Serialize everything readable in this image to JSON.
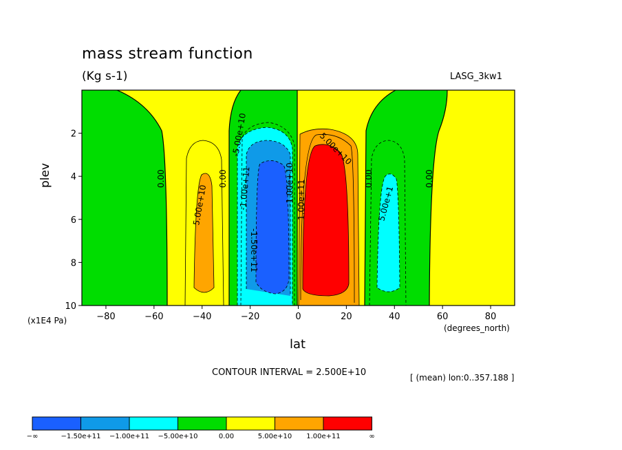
{
  "figure": {
    "title": "mass stream function",
    "units": "(Kg s-1)",
    "dataset": "LASG_3kw1",
    "y_units_label": "(x1E4 Pa)",
    "x_units_label": "(degrees_north)",
    "contour_interval_text": "CONTOUR INTERVAL = 2.500E+10",
    "region_text": "[ (mean) lon:0..357.188 ]"
  },
  "chart_data": {
    "type": "contour",
    "title": "mass stream function",
    "xlabel": "lat",
    "ylabel": "plev",
    "xlim": [
      -90,
      90
    ],
    "ylim": [
      10,
      0
    ],
    "x_ticks": [
      -80,
      -60,
      -40,
      -20,
      0,
      20,
      40,
      60,
      80
    ],
    "y_ticks": [
      2,
      4,
      6,
      8,
      10
    ],
    "contour_interval": 25000000000.0,
    "levels": [
      -150000000000.0,
      -100000000000.0,
      -50000000000.0,
      0,
      50000000000.0,
      100000000000.0
    ],
    "colorbar": {
      "labels": [
        "-∞",
        "-1.50e+11",
        "-1.00e+11",
        "-5.00e+10",
        "0.00",
        "5.00e+10",
        "1.00e+11",
        "∞"
      ],
      "colors": [
        "#1a60ff",
        "#0f9ae8",
        "#00ffff",
        "#00dd00",
        "#ffff00",
        "#ffa500",
        "#ff0000"
      ]
    },
    "cells": [
      {
        "name": "southern-polar-weak-cell",
        "lat_range": [
          -90,
          -54
        ],
        "plev_top": 0.5,
        "fill": "#00dd00",
        "label": "0.00"
      },
      {
        "name": "southern-ferrel-cell",
        "lat_range": [
          -54,
          -30
        ],
        "peak_lat": -40,
        "peak_plev": 6.5,
        "peak_range": "5.0e10 to 1.0e11",
        "label": "5.00e+10"
      },
      {
        "name": "southern-hadley-cell",
        "lat_range": [
          -30,
          0
        ],
        "peak_lat": -12,
        "peak_plev": 6,
        "peak_range": "< -1.5e11",
        "label": "-1.50e+11"
      },
      {
        "name": "northern-hadley-cell",
        "lat_range": [
          0,
          29
        ],
        "peak_lat": 10,
        "peak_plev": 6,
        "peak_range": "> 1.0e11",
        "label": "1.00e+11"
      },
      {
        "name": "northern-ferrel-cell",
        "lat_range": [
          30,
          55
        ],
        "peak_lat": 38,
        "peak_plev": 6.5,
        "peak_range": "-1.0e11 to -5.0e10",
        "label": "-5.00e+10"
      },
      {
        "name": "northern-polar-weak-cell",
        "lat_range": [
          55,
          90
        ],
        "fill": "#ffff00",
        "label": "0.00"
      }
    ],
    "contour_labels": [
      {
        "text": "0.00",
        "lat": -54,
        "plev": 4
      },
      {
        "text": "0.00",
        "lat": -30,
        "plev": 4
      },
      {
        "text": "5.00e+10",
        "lat": -41,
        "plev": 5
      },
      {
        "text": "-5.00e+10",
        "lat": -24,
        "plev": 2.6
      },
      {
        "text": "-1.00e+11",
        "lat": -20,
        "plev": 4.2
      },
      {
        "text": "-1.50e+11",
        "lat": -19,
        "plev": 6.3
      },
      {
        "text": "-1.00e+10",
        "lat": -1,
        "plev": 3.6
      },
      {
        "text": "1.00e+11",
        "lat": 2,
        "plev": 5
      },
      {
        "text": "5.00e+10",
        "lat": 13,
        "plev": 3.1
      },
      {
        "text": "0.00",
        "lat": 29,
        "plev": 4
      },
      {
        "text": "5.00e+1",
        "lat": 37,
        "plev": 5.2
      },
      {
        "text": "0.00",
        "lat": 54,
        "plev": 4
      }
    ]
  }
}
